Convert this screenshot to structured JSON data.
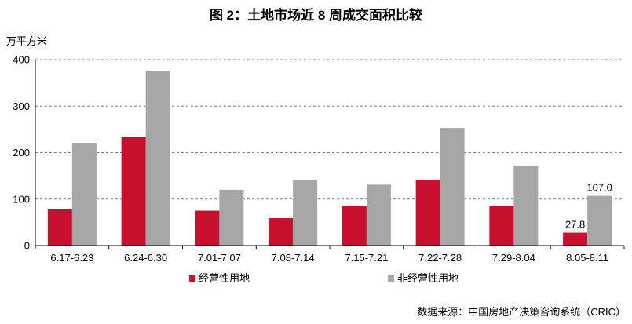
{
  "chart_data": {
    "type": "bar",
    "title": "图 2：土地市场近 8 周成交面积比较",
    "ylabel": "万平方米",
    "categories": [
      "6.17-6.23",
      "6.24-6.30",
      "7.01-7.07",
      "7.08-7.14",
      "7.15-7.21",
      "7.22-7.28",
      "7.29-8.04",
      "8.05-8.11"
    ],
    "series": [
      {
        "name": "经营性用地",
        "color": "#c8102e",
        "values": [
          78,
          234,
          75,
          59,
          85,
          141,
          85,
          27.8
        ]
      },
      {
        "name": "非经营性用地",
        "color": "#a6a6a6",
        "values": [
          221,
          376,
          120,
          140,
          131,
          253,
          172,
          107.0
        ]
      }
    ],
    "data_labels": [
      {
        "series": 0,
        "index": 7,
        "text": "27.8"
      },
      {
        "series": 1,
        "index": 7,
        "text": "107.0"
      }
    ],
    "ylim": [
      0,
      400
    ],
    "yticks": [
      0,
      100,
      200,
      300,
      400
    ],
    "grid": true,
    "grid_style": "dashed",
    "legend_position": "bottom-left"
  },
  "source": "数据来源：中国房地产决策咨询系统（CRIC）"
}
